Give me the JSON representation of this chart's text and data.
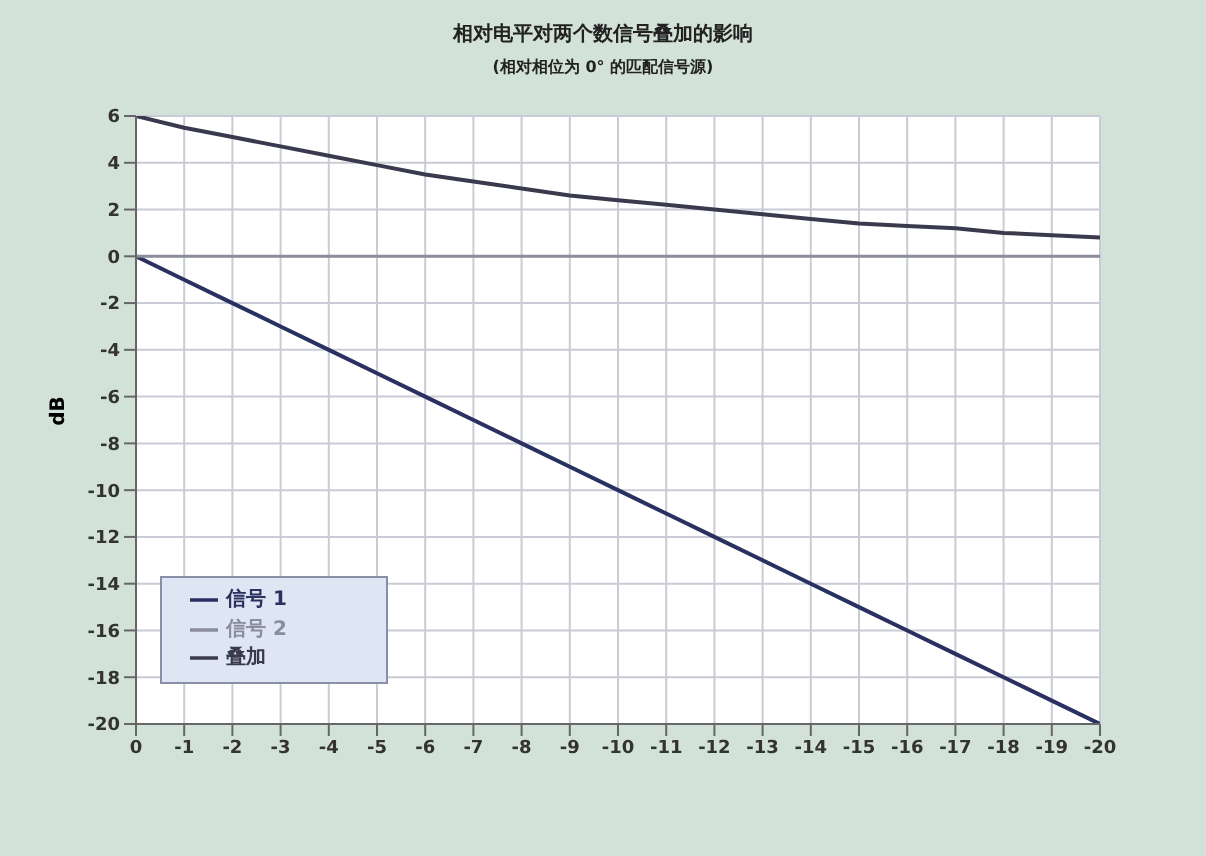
{
  "chart_data": {
    "type": "line",
    "title": "相对电平对两个数信号叠加的影响",
    "subtitle": "(相对相位为 0° 的匹配信号源)",
    "ylabel": "dB",
    "x": [
      0,
      -1,
      -2,
      -3,
      -4,
      -5,
      -6,
      -7,
      -8,
      -9,
      -10,
      -11,
      -12,
      -13,
      -14,
      -15,
      -16,
      -17,
      -18,
      -19,
      -20
    ],
    "series": [
      {
        "name": "信号 1",
        "color": "#2a3160",
        "values": [
          0,
          -1,
          -2,
          -3,
          -4,
          -5,
          -6,
          -7,
          -8,
          -9,
          -10,
          -11,
          -12,
          -13,
          -14,
          -15,
          -16,
          -17,
          -18,
          -19,
          -20
        ]
      },
      {
        "name": "信号 2",
        "color": "#8a8d9e",
        "values": [
          0,
          0,
          0,
          0,
          0,
          0,
          0,
          0,
          0,
          0,
          0,
          0,
          0,
          0,
          0,
          0,
          0,
          0,
          0,
          0,
          0
        ]
      },
      {
        "name": "叠加",
        "color": "#3a3a4e",
        "values": [
          6.0,
          5.5,
          5.1,
          4.7,
          4.3,
          3.9,
          3.5,
          3.2,
          2.9,
          2.6,
          2.4,
          2.2,
          2.0,
          1.8,
          1.6,
          1.4,
          1.3,
          1.2,
          1.0,
          0.9,
          0.8
        ]
      }
    ],
    "xlim": [
      0,
      -20
    ],
    "xticks": [
      0,
      -1,
      -2,
      -3,
      -4,
      -5,
      -6,
      -7,
      -8,
      -9,
      -10,
      -11,
      -12,
      -13,
      -14,
      -15,
      -16,
      -17,
      -18,
      -19,
      -20
    ],
    "ylim": [
      -20,
      6
    ],
    "yticks": [
      -20,
      -18,
      -16,
      -14,
      -12,
      -10,
      -8,
      -6,
      -4,
      -2,
      0,
      2,
      4,
      6
    ],
    "grid": true,
    "legend": "bottom left",
    "marker": "none",
    "line_style": "solid"
  }
}
